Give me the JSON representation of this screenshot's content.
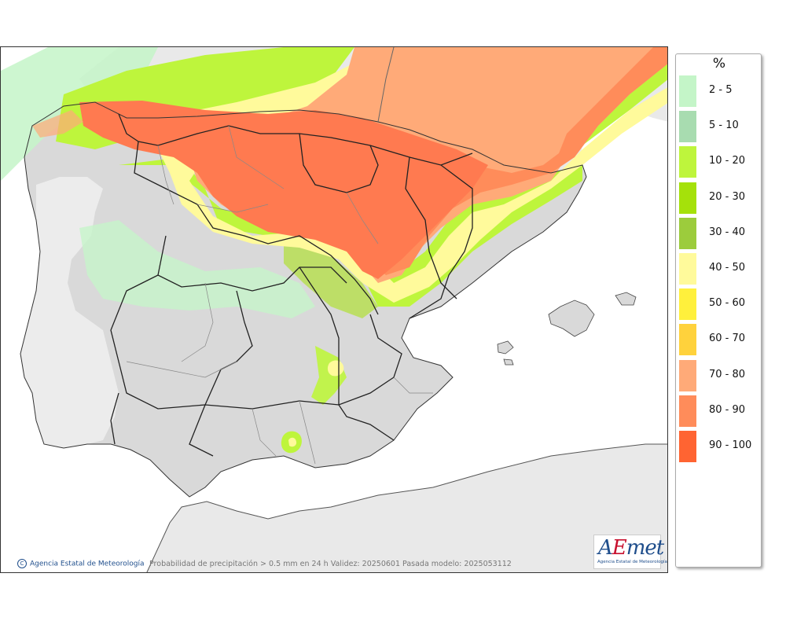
{
  "map": {
    "caption": "Probabilidad de precipitación > 0.5 mm en 24 h Validez: 20250601 Pasada modelo: 2025053112",
    "credit": "Agencia Estatal de Meteorología",
    "credit_symbol": "C",
    "logo": {
      "word_a": "A",
      "word_e": "E",
      "word_rest": "met",
      "subtitle": "Agencia Estatal de Meteorología"
    },
    "colors": {
      "sea": "#ffffff",
      "land_other": "#e9e9e9",
      "spain_land": "#d6d6d6",
      "border": "#222222"
    }
  },
  "legend": {
    "unit": "%",
    "items": [
      {
        "label": "2 - 5",
        "color": "#c4f5c8"
      },
      {
        "label": "5 - 10",
        "color": "#a8dcb0"
      },
      {
        "label": "10 - 20",
        "color": "#bef53c"
      },
      {
        "label": "20 - 30",
        "color": "#a5e10a"
      },
      {
        "label": "30 - 40",
        "color": "#9ccc3c"
      },
      {
        "label": "40 - 50",
        "color": "#fffa9b"
      },
      {
        "label": "50 - 60",
        "color": "#fff03c"
      },
      {
        "label": "60 - 70",
        "color": "#ffd23c"
      },
      {
        "label": "70 - 80",
        "color": "#ffaa78"
      },
      {
        "label": "80 - 90",
        "color": "#ff8c5a"
      },
      {
        "label": "90 - 100",
        "color": "#ff6432"
      }
    ]
  }
}
